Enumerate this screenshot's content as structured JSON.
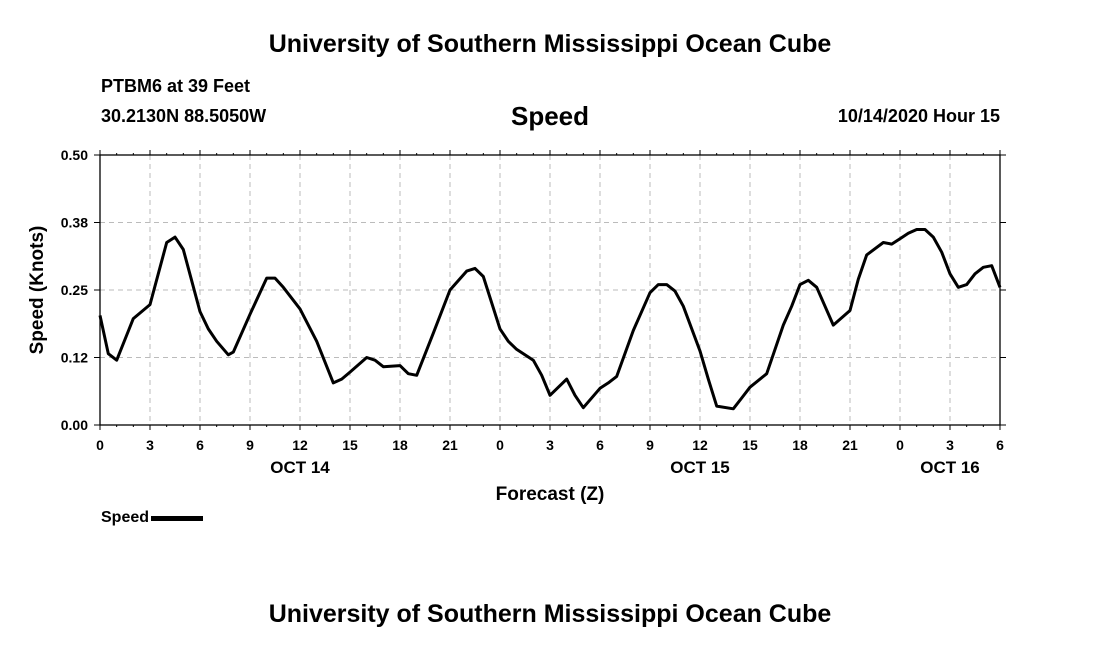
{
  "header": {
    "title": "University of Southern Mississippi Ocean Cube",
    "station": "PTBM6 at 39 Feet",
    "coords": "30.2130N 88.5050W",
    "variable": "Speed",
    "run_time": "10/14/2020 Hour 15"
  },
  "footer": {
    "title": "University of Southern Mississippi Ocean Cube"
  },
  "legend": {
    "label": "Speed"
  },
  "chart_data": {
    "type": "line",
    "title": "Speed",
    "xlabel": "Forecast (Z)",
    "ylabel": "Speed (Knots)",
    "xlim": [
      0,
      54
    ],
    "ylim": [
      0.0,
      0.5
    ],
    "grid": true,
    "legend_position": "bottom-left",
    "y_ticks": [
      "0.00",
      "0.12",
      "0.25",
      "0.38",
      "0.50"
    ],
    "y_tick_values": [
      0.0,
      0.125,
      0.25,
      0.375,
      0.5
    ],
    "x_ticks": [
      "0",
      "3",
      "6",
      "9",
      "12",
      "15",
      "18",
      "21",
      "0",
      "3",
      "6",
      "9",
      "12",
      "15",
      "18",
      "21",
      "0",
      "3",
      "6"
    ],
    "x_tick_values": [
      0,
      3,
      6,
      9,
      12,
      15,
      18,
      21,
      24,
      27,
      30,
      33,
      36,
      39,
      42,
      45,
      48,
      51,
      54
    ],
    "date_labels": [
      {
        "label": "OCT 14",
        "x": 12
      },
      {
        "label": "OCT 15",
        "x": 36
      },
      {
        "label": "OCT 16",
        "x": 51
      }
    ],
    "series": [
      {
        "name": "Speed",
        "color": "#000000",
        "x": [
          0,
          0.5,
          1,
          2,
          3,
          4,
          4.5,
          5,
          6,
          6.5,
          7,
          7.7,
          8,
          9,
          10,
          10.5,
          11,
          12,
          13,
          14,
          14.5,
          15,
          16,
          16.5,
          17,
          18,
          18.5,
          19,
          20,
          21,
          22,
          22.5,
          23,
          24,
          24.5,
          25,
          26,
          26.5,
          27,
          28,
          28.5,
          29,
          30,
          30.5,
          31,
          32,
          33,
          33.5,
          34,
          34.5,
          35,
          36,
          36.5,
          37,
          38,
          38.5,
          39,
          40,
          41,
          41.5,
          42,
          42.5,
          43,
          44,
          45,
          45.5,
          46,
          47,
          47.5,
          48,
          48.5,
          49,
          49.5,
          50,
          50.5,
          51,
          51.5,
          52,
          52.5,
          53,
          53.5,
          54
        ],
        "values": [
          0.203,
          0.132,
          0.12,
          0.197,
          0.223,
          0.338,
          0.348,
          0.325,
          0.21,
          0.178,
          0.155,
          0.13,
          0.135,
          0.205,
          0.272,
          0.272,
          0.255,
          0.215,
          0.155,
          0.078,
          0.085,
          0.098,
          0.125,
          0.12,
          0.108,
          0.11,
          0.095,
          0.092,
          0.17,
          0.25,
          0.285,
          0.29,
          0.275,
          0.178,
          0.155,
          0.14,
          0.12,
          0.092,
          0.055,
          0.085,
          0.055,
          0.032,
          0.068,
          0.078,
          0.09,
          0.175,
          0.245,
          0.26,
          0.26,
          0.248,
          0.22,
          0.137,
          0.085,
          0.035,
          0.03,
          0.05,
          0.07,
          0.095,
          0.185,
          0.22,
          0.26,
          0.268,
          0.255,
          0.185,
          0.212,
          0.27,
          0.315,
          0.338,
          0.335,
          0.345,
          0.355,
          0.362,
          0.362,
          0.348,
          0.32,
          0.28,
          0.255,
          0.26,
          0.28,
          0.292,
          0.295,
          0.255
        ]
      }
    ]
  }
}
